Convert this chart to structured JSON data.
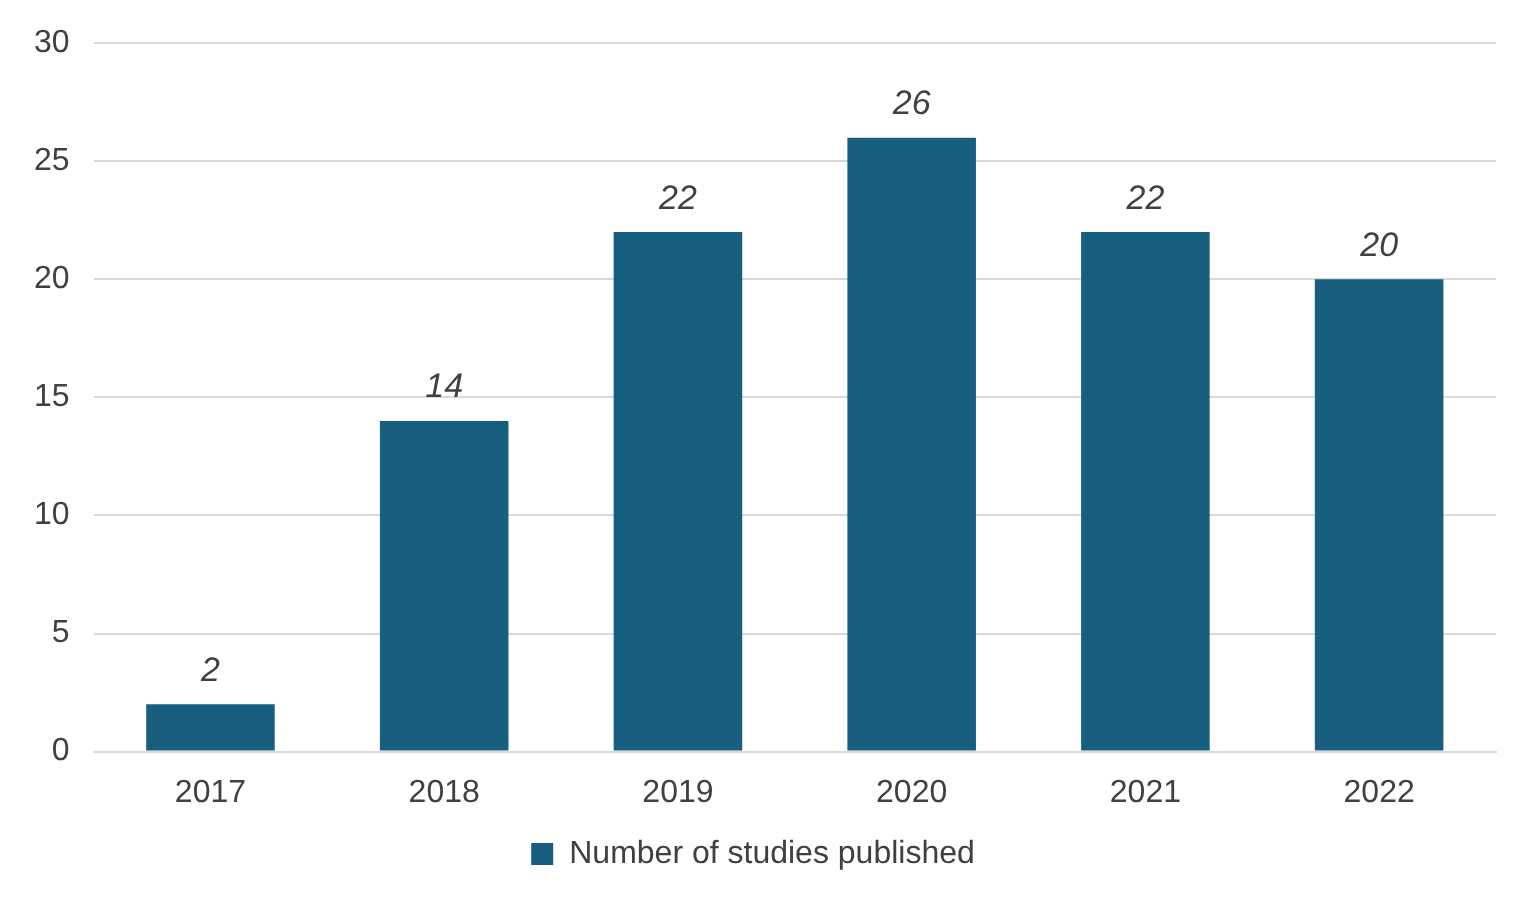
{
  "chart_data": {
    "type": "bar",
    "categories": [
      "2017",
      "2018",
      "2019",
      "2020",
      "2021",
      "2022"
    ],
    "series": [
      {
        "name": "Number of studies published",
        "color": "#175e7f",
        "values": [
          2,
          14,
          22,
          26,
          22,
          20
        ]
      }
    ],
    "ylim": [
      0,
      30
    ],
    "yticks": [
      0,
      5,
      10,
      15,
      20,
      25,
      30
    ],
    "grid": "y",
    "legend": "bottom",
    "data_labels": true
  }
}
